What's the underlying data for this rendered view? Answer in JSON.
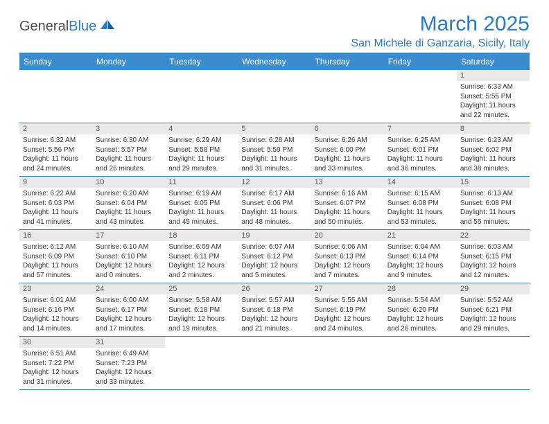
{
  "brand": {
    "part1": "General",
    "part2": "Blue"
  },
  "title": "March 2025",
  "location": "San Michele di Ganzaria, Sicily, Italy",
  "colors": {
    "accent": "#2b7bbf",
    "header_bg": "#3b8bcf",
    "day_bg": "#e9e9e9",
    "text": "#333333"
  },
  "dayHeaders": [
    "Sunday",
    "Monday",
    "Tuesday",
    "Wednesday",
    "Thursday",
    "Friday",
    "Saturday"
  ],
  "weeks": [
    [
      null,
      null,
      null,
      null,
      null,
      null,
      {
        "n": "1",
        "sr": "6:33 AM",
        "ss": "5:55 PM",
        "dh": "11",
        "dm": "22"
      }
    ],
    [
      {
        "n": "2",
        "sr": "6:32 AM",
        "ss": "5:56 PM",
        "dh": "11",
        "dm": "24"
      },
      {
        "n": "3",
        "sr": "6:30 AM",
        "ss": "5:57 PM",
        "dh": "11",
        "dm": "26"
      },
      {
        "n": "4",
        "sr": "6:29 AM",
        "ss": "5:58 PM",
        "dh": "11",
        "dm": "29"
      },
      {
        "n": "5",
        "sr": "6:28 AM",
        "ss": "5:59 PM",
        "dh": "11",
        "dm": "31"
      },
      {
        "n": "6",
        "sr": "6:26 AM",
        "ss": "6:00 PM",
        "dh": "11",
        "dm": "33"
      },
      {
        "n": "7",
        "sr": "6:25 AM",
        "ss": "6:01 PM",
        "dh": "11",
        "dm": "36"
      },
      {
        "n": "8",
        "sr": "6:23 AM",
        "ss": "6:02 PM",
        "dh": "11",
        "dm": "38"
      }
    ],
    [
      {
        "n": "9",
        "sr": "6:22 AM",
        "ss": "6:03 PM",
        "dh": "11",
        "dm": "41"
      },
      {
        "n": "10",
        "sr": "6:20 AM",
        "ss": "6:04 PM",
        "dh": "11",
        "dm": "43"
      },
      {
        "n": "11",
        "sr": "6:19 AM",
        "ss": "6:05 PM",
        "dh": "11",
        "dm": "45"
      },
      {
        "n": "12",
        "sr": "6:17 AM",
        "ss": "6:06 PM",
        "dh": "11",
        "dm": "48"
      },
      {
        "n": "13",
        "sr": "6:16 AM",
        "ss": "6:07 PM",
        "dh": "11",
        "dm": "50"
      },
      {
        "n": "14",
        "sr": "6:15 AM",
        "ss": "6:08 PM",
        "dh": "11",
        "dm": "53"
      },
      {
        "n": "15",
        "sr": "6:13 AM",
        "ss": "6:08 PM",
        "dh": "11",
        "dm": "55"
      }
    ],
    [
      {
        "n": "16",
        "sr": "6:12 AM",
        "ss": "6:09 PM",
        "dh": "11",
        "dm": "57"
      },
      {
        "n": "17",
        "sr": "6:10 AM",
        "ss": "6:10 PM",
        "dh": "12",
        "dm": "0"
      },
      {
        "n": "18",
        "sr": "6:09 AM",
        "ss": "6:11 PM",
        "dh": "12",
        "dm": "2"
      },
      {
        "n": "19",
        "sr": "6:07 AM",
        "ss": "6:12 PM",
        "dh": "12",
        "dm": "5"
      },
      {
        "n": "20",
        "sr": "6:06 AM",
        "ss": "6:13 PM",
        "dh": "12",
        "dm": "7"
      },
      {
        "n": "21",
        "sr": "6:04 AM",
        "ss": "6:14 PM",
        "dh": "12",
        "dm": "9"
      },
      {
        "n": "22",
        "sr": "6:03 AM",
        "ss": "6:15 PM",
        "dh": "12",
        "dm": "12"
      }
    ],
    [
      {
        "n": "23",
        "sr": "6:01 AM",
        "ss": "6:16 PM",
        "dh": "12",
        "dm": "14"
      },
      {
        "n": "24",
        "sr": "6:00 AM",
        "ss": "6:17 PM",
        "dh": "12",
        "dm": "17"
      },
      {
        "n": "25",
        "sr": "5:58 AM",
        "ss": "6:18 PM",
        "dh": "12",
        "dm": "19"
      },
      {
        "n": "26",
        "sr": "5:57 AM",
        "ss": "6:18 PM",
        "dh": "12",
        "dm": "21"
      },
      {
        "n": "27",
        "sr": "5:55 AM",
        "ss": "6:19 PM",
        "dh": "12",
        "dm": "24"
      },
      {
        "n": "28",
        "sr": "5:54 AM",
        "ss": "6:20 PM",
        "dh": "12",
        "dm": "26"
      },
      {
        "n": "29",
        "sr": "5:52 AM",
        "ss": "6:21 PM",
        "dh": "12",
        "dm": "29"
      }
    ],
    [
      {
        "n": "30",
        "sr": "6:51 AM",
        "ss": "7:22 PM",
        "dh": "12",
        "dm": "31"
      },
      {
        "n": "31",
        "sr": "6:49 AM",
        "ss": "7:23 PM",
        "dh": "12",
        "dm": "33"
      },
      null,
      null,
      null,
      null,
      null
    ]
  ]
}
